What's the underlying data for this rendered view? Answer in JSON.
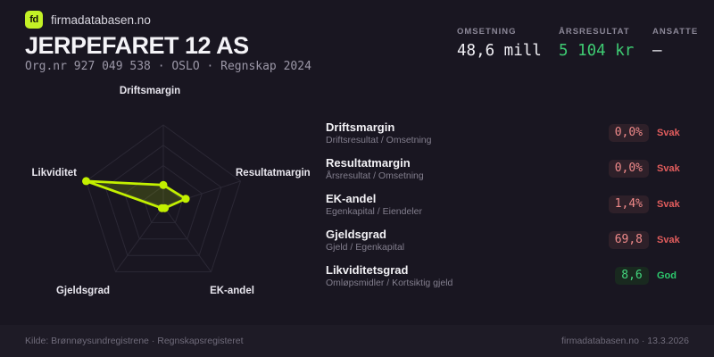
{
  "header": {
    "logo_text": "fd",
    "brand": "firmadatabasen.no",
    "company_name": "JERPEFARET 12 AS",
    "meta": "Org.nr 927 049 538  ·  OSLO  ·  Regnskap 2024"
  },
  "stats": [
    {
      "label": "OMSETNING",
      "value": "48,6 mill"
    },
    {
      "label": "ÅRSRESULTAT",
      "value": "5 104 kr"
    },
    {
      "label": "ANSATTE",
      "value": "–"
    }
  ],
  "chart_data": {
    "type": "radar",
    "axes": [
      "Driftsmargin",
      "Resultatmargin",
      "EK-andel",
      "Gjeldsgrad",
      "Likviditet"
    ],
    "values_normalized": [
      0.26,
      0.29,
      0.03,
      0.03,
      1.0
    ],
    "values_raw": [
      "0,0%",
      "0,0%",
      "1,4%",
      "69,8",
      "8,6"
    ],
    "rings": 4,
    "line_color": "#c3f000",
    "fill_color": "rgba(195,240,0,0.16)",
    "grid_color": "#2b2835"
  },
  "metrics": [
    {
      "title": "Driftsmargin",
      "formula": "Driftsresultat / Omsetning",
      "value": "0,0%",
      "rating": "Svak"
    },
    {
      "title": "Resultatmargin",
      "formula": "Årsresultat / Omsetning",
      "value": "0,0%",
      "rating": "Svak"
    },
    {
      "title": "EK-andel",
      "formula": "Egenkapital / Eiendeler",
      "value": "1,4%",
      "rating": "Svak"
    },
    {
      "title": "Gjeldsgrad",
      "formula": "Gjeld / Egenkapital",
      "value": "69,8",
      "rating": "Svak"
    },
    {
      "title": "Likviditetsgrad",
      "formula": "Omløpsmidler / Kortsiktig gjeld",
      "value": "8,6",
      "rating": "God"
    }
  ],
  "footer": {
    "source": "Kilde: Brønnøysundregistrene · Regnskapsregisteret",
    "attribution": "firmadatabasen.no · 13.3.2026"
  }
}
